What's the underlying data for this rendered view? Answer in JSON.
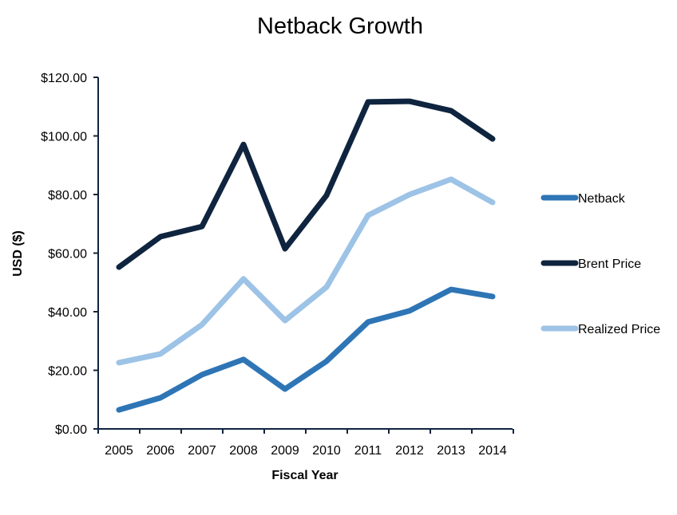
{
  "chart_data": {
    "type": "line",
    "title": "Netback Growth",
    "xlabel": "Fiscal Year",
    "ylabel": "USD ($)",
    "ylim": [
      0,
      120
    ],
    "yticks": [
      0,
      20,
      40,
      60,
      80,
      100,
      120
    ],
    "ytick_labels": [
      "$0.00",
      "$20.00",
      "$40.00",
      "$60.00",
      "$80.00",
      "$100.00",
      "$120.00"
    ],
    "categories": [
      "2005",
      "2006",
      "2007",
      "2008",
      "2009",
      "2010",
      "2011",
      "2012",
      "2013",
      "2014"
    ],
    "grid": false,
    "legend_position": "right",
    "series": [
      {
        "name": "Netback",
        "color": "#2E75B6",
        "values": [
          6.5,
          10.6,
          18.5,
          23.7,
          13.6,
          23.1,
          36.5,
          40.3,
          47.6,
          45.2
        ]
      },
      {
        "name": "Brent Price",
        "color": "#0F243E",
        "values": [
          55.2,
          65.6,
          69.1,
          97.1,
          61.5,
          79.7,
          111.6,
          111.8,
          108.6,
          99.0
        ]
      },
      {
        "name": "Realized Price",
        "color": "#9DC3E6",
        "values": [
          22.6,
          25.6,
          35.6,
          51.2,
          37.0,
          48.4,
          72.9,
          80.0,
          85.2,
          77.3
        ]
      }
    ],
    "axis_color": "#0F243E"
  }
}
